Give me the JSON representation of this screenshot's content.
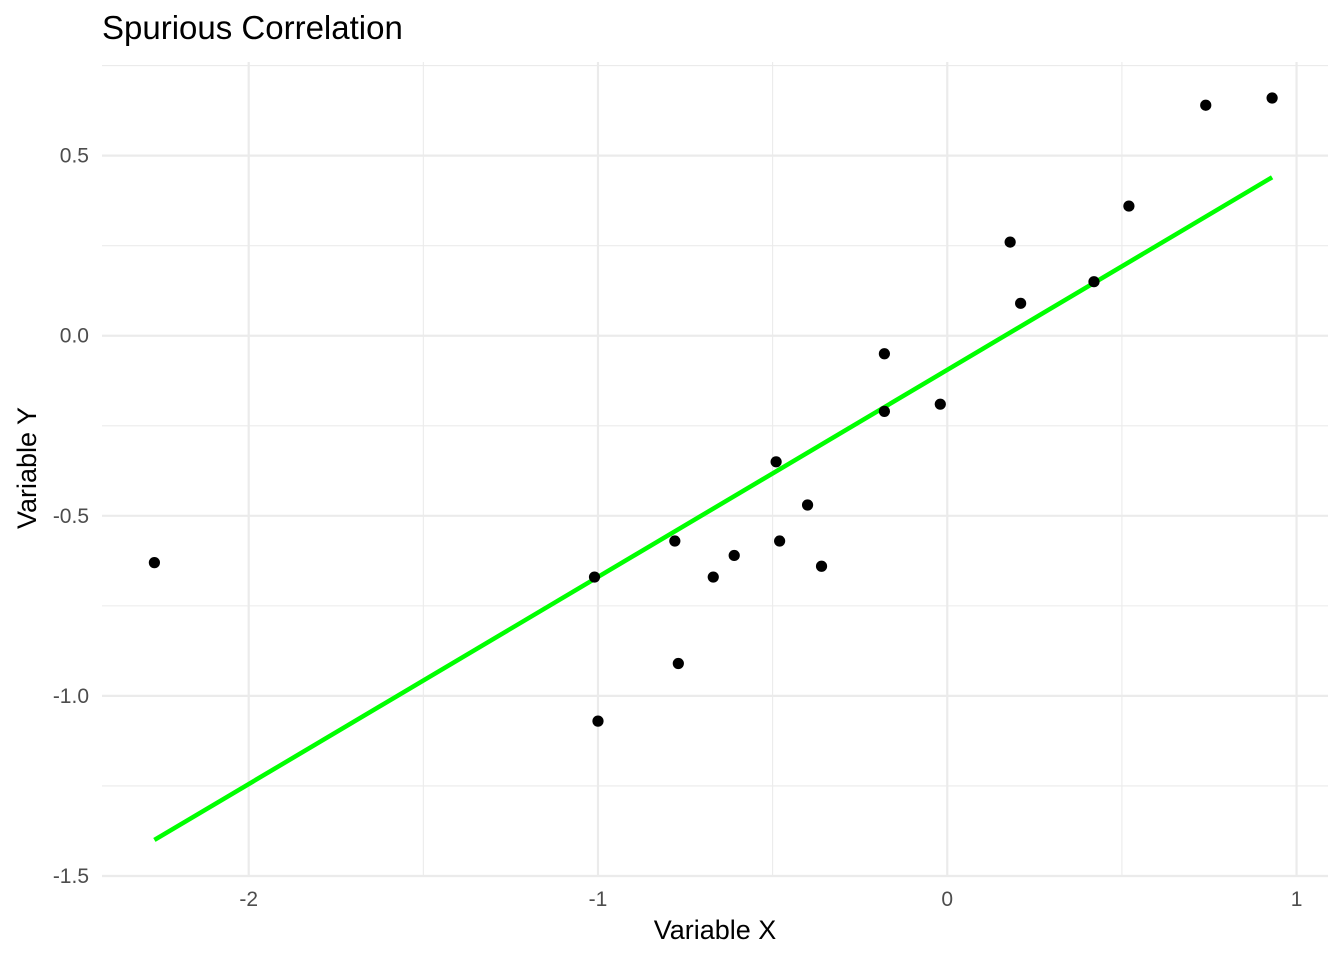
{
  "chart_data": {
    "type": "scatter",
    "title": "Spurious Correlation",
    "xlabel": "Variable X",
    "ylabel": "Variable Y",
    "xlim": [
      -2.42,
      1.09
    ],
    "ylim": [
      -1.5,
      0.76
    ],
    "x_ticks": [
      -2,
      -1,
      0,
      1
    ],
    "x_tick_labels": [
      "-2",
      "-1",
      "0",
      "1"
    ],
    "x_minor_ticks": [
      -1.5,
      -0.5,
      0.5
    ],
    "y_ticks": [
      -1.5,
      -1.0,
      -0.5,
      0.0,
      0.5
    ],
    "y_tick_labels": [
      "-1.5",
      "-1.0",
      "-0.5",
      "0.0",
      "0.5"
    ],
    "y_minor_ticks": [
      -1.25,
      -0.75,
      -0.25,
      0.25,
      0.75
    ],
    "grid": true,
    "points": [
      {
        "x": -2.27,
        "y": -0.63
      },
      {
        "x": -1.01,
        "y": -0.67
      },
      {
        "x": -1.0,
        "y": -1.07
      },
      {
        "x": -0.78,
        "y": -0.57
      },
      {
        "x": -0.77,
        "y": -0.91
      },
      {
        "x": -0.67,
        "y": -0.67
      },
      {
        "x": -0.61,
        "y": -0.61
      },
      {
        "x": -0.49,
        "y": -0.35
      },
      {
        "x": -0.48,
        "y": -0.57
      },
      {
        "x": -0.4,
        "y": -0.47
      },
      {
        "x": -0.36,
        "y": -0.64
      },
      {
        "x": -0.18,
        "y": -0.05
      },
      {
        "x": -0.18,
        "y": -0.21
      },
      {
        "x": -0.02,
        "y": -0.19
      },
      {
        "x": 0.18,
        "y": 0.26
      },
      {
        "x": 0.21,
        "y": 0.09
      },
      {
        "x": 0.42,
        "y": 0.15
      },
      {
        "x": 0.52,
        "y": 0.36
      },
      {
        "x": 0.74,
        "y": 0.64
      },
      {
        "x": 0.93,
        "y": 0.66
      }
    ],
    "trend_line": {
      "x": [
        -2.27,
        0.93
      ],
      "y": [
        -1.4,
        0.44
      ]
    },
    "colors": {
      "points": "#000000",
      "trend_line": "#00ff00"
    }
  }
}
